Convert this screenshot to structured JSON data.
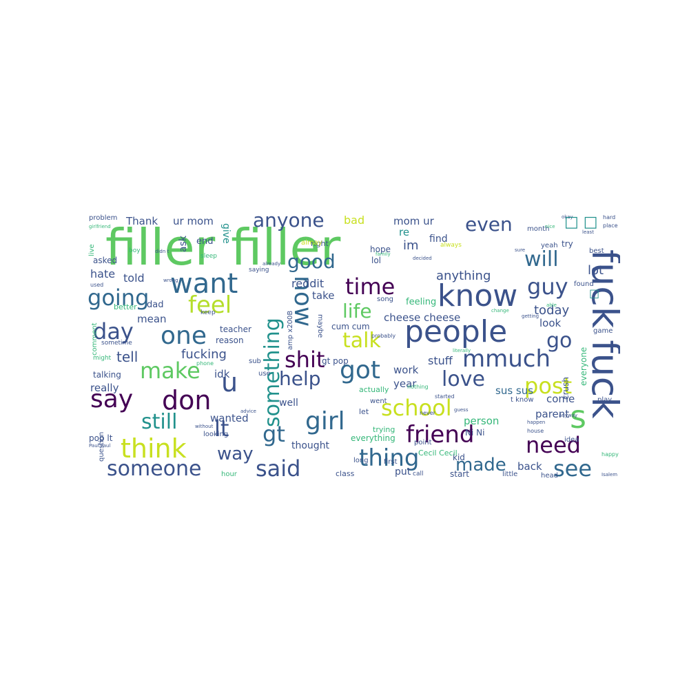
{
  "palette": {
    "dark": "#440154",
    "indigo": "#3b528b",
    "blue": "#31688e",
    "teal": "#21918c",
    "green": "#35b779",
    "lime": "#5ec962",
    "yellow": "#c8e020",
    "bright": "#b5de2b"
  },
  "words": [
    {
      "text": "filler filler",
      "color": "#5ec962"
    },
    {
      "text": "fuck fuck",
      "color": "#3b528b"
    },
    {
      "text": "want",
      "color": "#31688e"
    },
    {
      "text": "know",
      "color": "#3b528b"
    },
    {
      "text": "people",
      "color": "#3b528b"
    },
    {
      "text": "one",
      "color": "#31688e"
    },
    {
      "text": "day",
      "color": "#3b528b"
    },
    {
      "text": "feel",
      "color": "#b5de2b"
    },
    {
      "text": "going",
      "color": "#31688e"
    },
    {
      "text": "time",
      "color": "#440154"
    },
    {
      "text": "guy",
      "color": "#3b528b"
    },
    {
      "text": "good",
      "color": "#31688e"
    },
    {
      "text": "anyone",
      "color": "#3b528b"
    },
    {
      "text": "even",
      "color": "#3b528b"
    },
    {
      "text": "will",
      "color": "#31688e"
    },
    {
      "text": "life",
      "color": "#5ec962"
    },
    {
      "text": "talk",
      "color": "#c8e020"
    },
    {
      "text": "now",
      "color": "#31688e"
    },
    {
      "text": "something",
      "color": "#21918c"
    },
    {
      "text": "shit",
      "color": "#440154"
    },
    {
      "text": "got",
      "color": "#31688e"
    },
    {
      "text": "mmuch",
      "color": "#3b528b"
    },
    {
      "text": "go",
      "color": "#3b528b"
    },
    {
      "text": "make",
      "color": "#5ec962"
    },
    {
      "text": "say",
      "color": "#440154"
    },
    {
      "text": "don",
      "color": "#440154"
    },
    {
      "text": "u",
      "color": "#3b528b"
    },
    {
      "text": "help",
      "color": "#3b528b"
    },
    {
      "text": "love",
      "color": "#3b528b"
    },
    {
      "text": "post",
      "color": "#c8e020"
    },
    {
      "text": "school",
      "color": "#c8e020"
    },
    {
      "text": "still",
      "color": "#21918c"
    },
    {
      "text": "lt",
      "color": "#3b528b"
    },
    {
      "text": "girl",
      "color": "#31688e"
    },
    {
      "text": "friend",
      "color": "#440154"
    },
    {
      "text": "need",
      "color": "#440154"
    },
    {
      "text": "s",
      "color": "#5ec962"
    },
    {
      "text": "think",
      "color": "#c8e020"
    },
    {
      "text": "way",
      "color": "#3b528b"
    },
    {
      "text": "gt",
      "color": "#31688e"
    },
    {
      "text": "thing",
      "color": "#31688e"
    },
    {
      "text": "made",
      "color": "#31688e"
    },
    {
      "text": "see",
      "color": "#31688e"
    },
    {
      "text": "someone",
      "color": "#3b528b"
    },
    {
      "text": "said",
      "color": "#3b528b"
    },
    {
      "text": "anything",
      "color": "#3b528b"
    },
    {
      "text": "today",
      "color": "#3b528b"
    },
    {
      "text": "lot",
      "color": "#3b528b"
    },
    {
      "text": "look",
      "color": "#3b528b"
    },
    {
      "text": "cheese cheese",
      "color": "#3b528b"
    },
    {
      "text": "tell",
      "color": "#3b528b"
    },
    {
      "text": "fucking",
      "color": "#3b528b"
    },
    {
      "text": "reddit",
      "color": "#3b528b"
    },
    {
      "text": "told",
      "color": "#3b528b"
    },
    {
      "text": "hate",
      "color": "#3b528b"
    },
    {
      "text": "Thank",
      "color": "#3b528b"
    },
    {
      "text": "ur mom",
      "color": "#3b528b"
    },
    {
      "text": "mom ur",
      "color": "#3b528b"
    },
    {
      "text": "bad",
      "color": "#c8e020"
    },
    {
      "text": "re",
      "color": "#21918c"
    },
    {
      "text": "im",
      "color": "#3b528b"
    },
    {
      "text": "stuff",
      "color": "#3b528b"
    },
    {
      "text": "sus sus",
      "color": "#31688e"
    },
    {
      "text": "person",
      "color": "#35b779"
    },
    {
      "text": "parent",
      "color": "#3b528b"
    },
    {
      "text": "come",
      "color": "#3b528b"
    },
    {
      "text": "work",
      "color": "#3b528b"
    },
    {
      "text": "year",
      "color": "#3b528b"
    },
    {
      "text": "back",
      "color": "#3b528b"
    },
    {
      "text": "wanted",
      "color": "#3b528b"
    },
    {
      "text": "idk",
      "color": "#3b528b"
    },
    {
      "text": "really",
      "color": "#3b528b"
    },
    {
      "text": "mean",
      "color": "#3b528b"
    },
    {
      "text": "dad",
      "color": "#3b528b"
    },
    {
      "text": "ask",
      "color": "#3b528b"
    },
    {
      "text": "end",
      "color": "#3b528b"
    },
    {
      "text": "give",
      "color": "#21918c"
    },
    {
      "text": "take",
      "color": "#3b528b"
    },
    {
      "text": "feeling",
      "color": "#35b779"
    },
    {
      "text": "find",
      "color": "#3b528b"
    },
    {
      "text": "hope",
      "color": "#3b528b"
    },
    {
      "text": "lol",
      "color": "#3b528b"
    },
    {
      "text": "well",
      "color": "#3b528b"
    },
    {
      "text": "thought",
      "color": "#3b528b"
    },
    {
      "text": "class",
      "color": "#3b528b"
    },
    {
      "text": "put",
      "color": "#3b528b"
    },
    {
      "text": "start",
      "color": "#3b528b"
    },
    {
      "text": "kid",
      "color": "#3b528b"
    },
    {
      "text": "Ni Ni",
      "color": "#3b528b"
    },
    {
      "text": "Cecil Cecil",
      "color": "#35b779"
    },
    {
      "text": "everything",
      "color": "#35b779"
    },
    {
      "text": "gt pop",
      "color": "#3b528b"
    },
    {
      "text": "cum cum",
      "color": "#3b528b"
    },
    {
      "text": "teacher",
      "color": "#3b528b"
    },
    {
      "text": "reason",
      "color": "#3b528b"
    },
    {
      "text": "asked",
      "color": "#3b528b"
    },
    {
      "text": "better",
      "color": "#35b779"
    },
    {
      "text": "talking",
      "color": "#3b528b"
    },
    {
      "text": "pop lt",
      "color": "#3b528b"
    },
    {
      "text": "crush",
      "color": "#3b528b"
    },
    {
      "text": "everyone",
      "color": "#35b779"
    },
    {
      "text": "trying",
      "color": "#35b779"
    },
    {
      "text": "right",
      "color": "#3b528b"
    },
    {
      "text": "let",
      "color": "#3b528b"
    },
    {
      "text": "actually",
      "color": "#35b779"
    },
    {
      "text": "went",
      "color": "#3b528b"
    },
    {
      "text": "t know",
      "color": "#3b528b"
    },
    {
      "text": "amp x200B",
      "color": "#3b528b"
    },
    {
      "text": "maybe",
      "color": "#3b528b"
    },
    {
      "text": "live",
      "color": "#35b779"
    },
    {
      "text": "problem",
      "color": "#3b528b"
    },
    {
      "text": "try",
      "color": "#3b528b"
    },
    {
      "text": "best",
      "color": "#3b528b"
    },
    {
      "text": "found",
      "color": "#3b528b"
    },
    {
      "text": "month",
      "color": "#3b528b"
    },
    {
      "text": "yeah",
      "color": "#3b528b"
    },
    {
      "text": "game",
      "color": "#3b528b"
    },
    {
      "text": "play",
      "color": "#3b528b"
    },
    {
      "text": "idea",
      "color": "#3b528b"
    },
    {
      "text": "little",
      "color": "#3b528b"
    },
    {
      "text": "head",
      "color": "#3b528b"
    },
    {
      "text": "first",
      "color": "#3b528b"
    },
    {
      "text": "long",
      "color": "#3b528b"
    },
    {
      "text": "question",
      "color": "#3b528b"
    },
    {
      "text": "hour",
      "color": "#35b779"
    },
    {
      "text": "sub",
      "color": "#3b528b"
    },
    {
      "text": "looking",
      "color": "#3b528b"
    },
    {
      "text": "use",
      "color": "#3b528b"
    },
    {
      "text": "point",
      "color": "#3b528b"
    },
    {
      "text": "comment",
      "color": "#35b779"
    },
    {
      "text": "sometime",
      "color": "#3b528b"
    },
    {
      "text": "might",
      "color": "#35b779"
    },
    {
      "text": "call",
      "color": "#3b528b"
    },
    {
      "text": "always",
      "color": "#c8e020"
    },
    {
      "text": "keep",
      "color": "#3b528b"
    },
    {
      "text": "almay",
      "color": "#c8e020"
    },
    {
      "text": "song",
      "color": "#3b528b"
    },
    {
      "text": "sleep",
      "color": "#35b779"
    },
    {
      "text": "saying",
      "color": "#3b528b"
    },
    {
      "text": "used",
      "color": "#3b528b"
    },
    {
      "text": "boy",
      "color": "#35b779"
    },
    {
      "text": "happy",
      "color": "#35b779"
    },
    {
      "text": "nothing",
      "color": "#35b779"
    },
    {
      "text": "probably",
      "color": "#3b528b"
    },
    {
      "text": "house",
      "color": "#3b528b"
    },
    {
      "text": "started",
      "color": "#3b528b"
    },
    {
      "text": "never",
      "color": "#3b528b"
    },
    {
      "text": "already",
      "color": "#3b528b"
    },
    {
      "text": "family",
      "color": "#35b779"
    },
    {
      "text": "decided",
      "color": "#3b528b"
    },
    {
      "text": "phone",
      "color": "#35b779"
    },
    {
      "text": "literally",
      "color": "#35b779"
    },
    {
      "text": "guess",
      "color": "#3b528b"
    },
    {
      "text": "advice",
      "color": "#3b528b"
    },
    {
      "text": "without",
      "color": "#3b528b"
    },
    {
      "text": "Paul Paul",
      "color": "#3b528b"
    },
    {
      "text": "happen",
      "color": "#3b528b"
    },
    {
      "text": "change",
      "color": "#35b779"
    },
    {
      "text": "girlfriend",
      "color": "#35b779"
    },
    {
      "text": "hard",
      "color": "#3b528b"
    },
    {
      "text": "place",
      "color": "#3b528b"
    },
    {
      "text": "okay",
      "color": "#3b528b"
    },
    {
      "text": "nice",
      "color": "#35b779"
    },
    {
      "text": "least",
      "color": "#3b528b"
    },
    {
      "text": "didn t",
      "color": "#3b528b"
    },
    {
      "text": "anyway",
      "color": "#3b528b"
    },
    {
      "text": "Isalem",
      "color": "#3b528b"
    },
    {
      "text": "sure",
      "color": "#3b528b"
    },
    {
      "text": "able",
      "color": "#35b779"
    },
    {
      "text": "getting",
      "color": "#3b528b"
    },
    {
      "text": "wrong",
      "color": "#3b528b"
    },
    {
      "text": "□ □",
      "color": "#21918c"
    },
    {
      "text": "□",
      "color": "#21918c"
    }
  ]
}
